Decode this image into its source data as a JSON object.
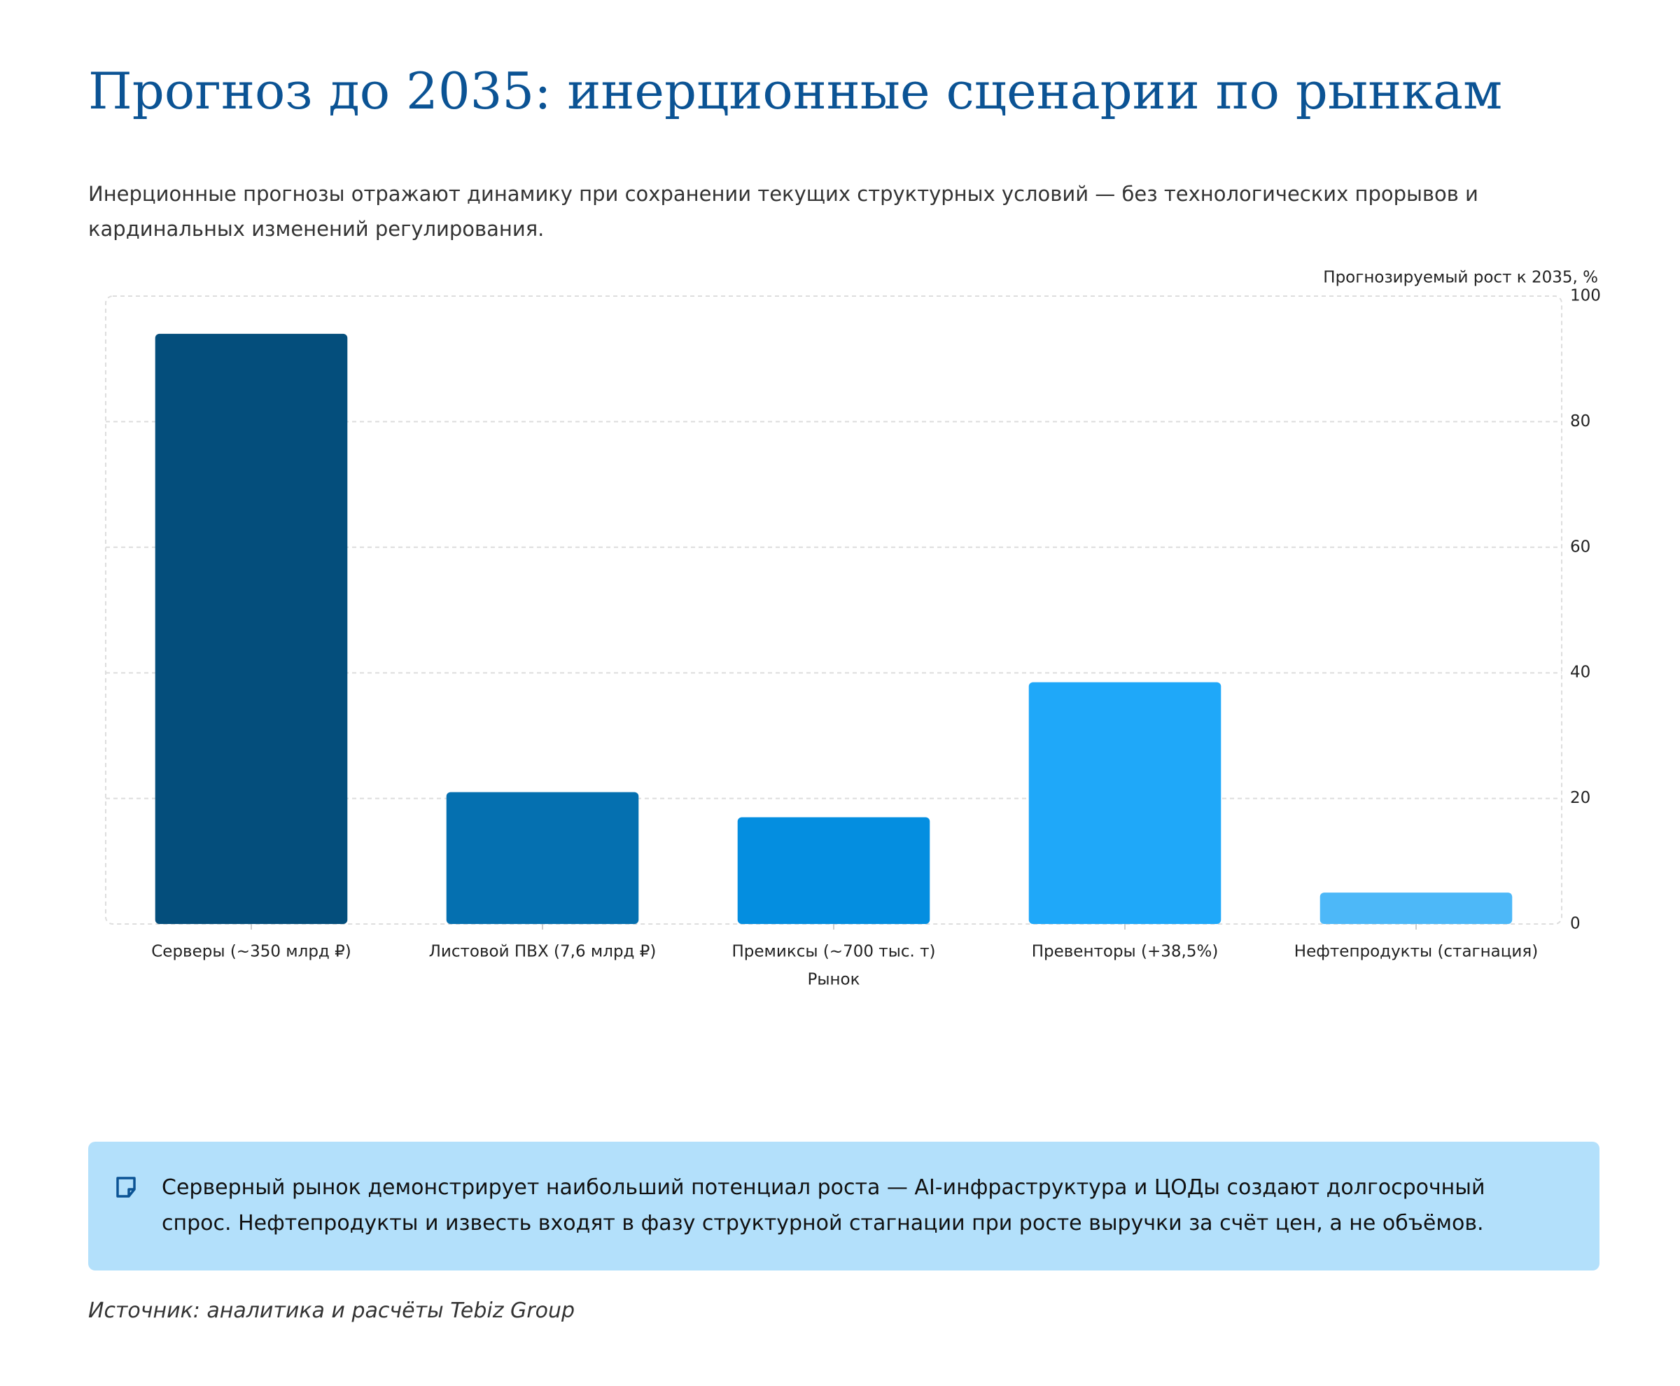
{
  "chart_data": {
    "type": "bar",
    "title": "Прогноз до 2035: инерционные сценарии по рынкам",
    "subtitle": "Инерционные прогнозы отражают динамику при сохранении текущих структурных условий — без технологических прорывов и кардинальных изменений регулирования.",
    "ylabel": "Прогнозируемый рост к 2035, %",
    "xlabel": "Рынок",
    "categories": [
      "Серверы (~350 млрд ₽)",
      "Листовой ПВХ (7,6 млрд ₽)",
      "Премиксы (~700 тыс. т)",
      "Превенторы (+38,5%)",
      "Нефтепродукты (стагнация)"
    ],
    "values": [
      94,
      21,
      17,
      38.5,
      5
    ],
    "colors": [
      "#044e7c",
      "#0570b0",
      "#048ee0",
      "#1fa8f9",
      "#4db8f8"
    ],
    "ylim": [
      0,
      100
    ],
    "yticks": [
      0,
      20,
      40,
      60,
      80,
      100
    ],
    "grid": true,
    "yaxis_side": "right"
  },
  "note": "Серверный рынок демонстрирует наибольший потенциал роста — AI-инфраструктура и ЦОДы создают долгосрочный спрос. Нефтепродукты и известь входят в фазу структурной стагнации при росте выручки за счёт цен, а не объёмов.",
  "source": "Источник: аналитика и расчёты Tebiz Group"
}
